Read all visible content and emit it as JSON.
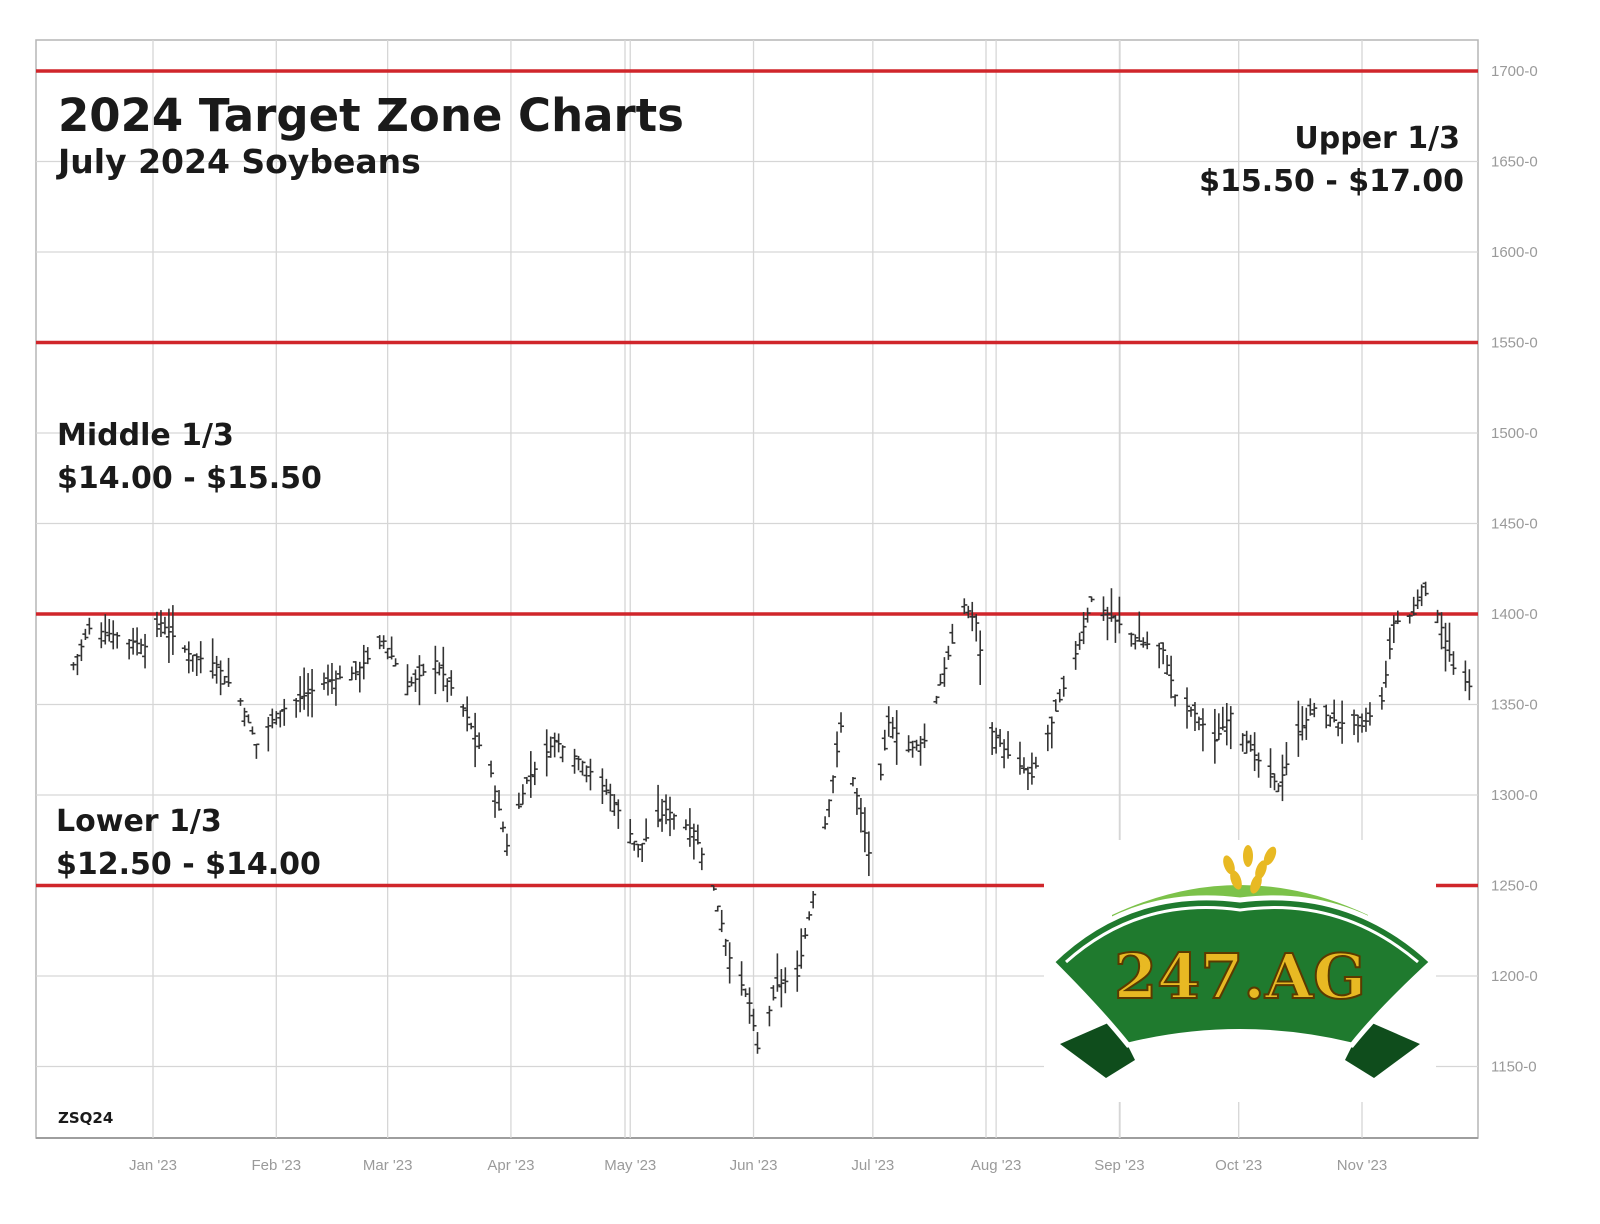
{
  "header": {
    "title": "2024 Target Zone Charts",
    "subtitle": "July 2024 Soybeans"
  },
  "zones": {
    "upper": {
      "label": "Upper 1/3",
      "range": "$15.50 - $17.00"
    },
    "middle": {
      "label": "Middle 1/3",
      "range": "$14.00 - $15.50"
    },
    "lower": {
      "label": "Lower 1/3",
      "range": "$12.50 - $14.00"
    }
  },
  "symbol": "ZSQ24",
  "logo": {
    "text": "247.AG"
  },
  "colors": {
    "zone_line": "#d0262b",
    "bars": "#333333",
    "grid": "#d6d6d6",
    "axis_text": "#9a9a9a",
    "logo_green": "#1f7a2e",
    "logo_gold": "#e8b923"
  },
  "chart_data": {
    "type": "ohlc",
    "x_tick_labels": [
      "Jan '23",
      "Feb '23",
      "Mar '23",
      "Apr '23",
      "May '23",
      "Jun '23",
      "Jul '23",
      "Aug '23",
      "Sep '23",
      "Oct '23",
      "Nov '23"
    ],
    "y_tick_values": [
      1150,
      1200,
      1250,
      1300,
      1350,
      1400,
      1450,
      1500,
      1550,
      1600,
      1650,
      1700
    ],
    "y_tick_labels": [
      "1150-0",
      "1200-0",
      "1250-0",
      "1300-0",
      "1350-0",
      "1400-0",
      "1450-0",
      "1500-0",
      "1550-0",
      "1600-0",
      "1650-0",
      "1700-0"
    ],
    "ylim": [
      1130,
      1715
    ],
    "zone_lines": [
      1250,
      1400,
      1550,
      1700
    ],
    "grid": true,
    "price_path": [
      {
        "date": "2022-12-12",
        "close": 1372
      },
      {
        "date": "2022-12-16",
        "close": 1392
      },
      {
        "date": "2022-12-23",
        "close": 1388
      },
      {
        "date": "2022-12-30",
        "close": 1382
      },
      {
        "date": "2023-01-03",
        "close": 1395
      },
      {
        "date": "2023-01-10",
        "close": 1378
      },
      {
        "date": "2023-01-17",
        "close": 1372
      },
      {
        "date": "2023-01-23",
        "close": 1352
      },
      {
        "date": "2023-01-27",
        "close": 1328
      },
      {
        "date": "2023-02-01",
        "close": 1345
      },
      {
        "date": "2023-02-06",
        "close": 1352
      },
      {
        "date": "2023-02-13",
        "close": 1362
      },
      {
        "date": "2023-02-21",
        "close": 1368
      },
      {
        "date": "2023-02-28",
        "close": 1385
      },
      {
        "date": "2023-03-06",
        "close": 1360
      },
      {
        "date": "2023-03-13",
        "close": 1374
      },
      {
        "date": "2023-03-20",
        "close": 1348
      },
      {
        "date": "2023-03-27",
        "close": 1312
      },
      {
        "date": "2023-03-31",
        "close": 1272
      },
      {
        "date": "2023-04-05",
        "close": 1308
      },
      {
        "date": "2023-04-12",
        "close": 1330
      },
      {
        "date": "2023-04-19",
        "close": 1318
      },
      {
        "date": "2023-04-26",
        "close": 1300
      },
      {
        "date": "2023-05-03",
        "close": 1270
      },
      {
        "date": "2023-05-10",
        "close": 1292
      },
      {
        "date": "2023-05-17",
        "close": 1280
      },
      {
        "date": "2023-05-22",
        "close": 1248
      },
      {
        "date": "2023-05-26",
        "close": 1210
      },
      {
        "date": "2023-05-31",
        "close": 1185
      },
      {
        "date": "2023-06-02",
        "close": 1160
      },
      {
        "date": "2023-06-07",
        "close": 1195
      },
      {
        "date": "2023-06-12",
        "close": 1200
      },
      {
        "date": "2023-06-16",
        "close": 1245
      },
      {
        "date": "2023-06-21",
        "close": 1310
      },
      {
        "date": "2023-06-23",
        "close": 1338
      },
      {
        "date": "2023-06-28",
        "close": 1290
      },
      {
        "date": "2023-06-30",
        "close": 1268
      },
      {
        "date": "2023-07-05",
        "close": 1340
      },
      {
        "date": "2023-07-10",
        "close": 1325
      },
      {
        "date": "2023-07-14",
        "close": 1330
      },
      {
        "date": "2023-07-19",
        "close": 1370
      },
      {
        "date": "2023-07-24",
        "close": 1405
      },
      {
        "date": "2023-07-27",
        "close": 1395
      },
      {
        "date": "2023-07-31",
        "close": 1335
      },
      {
        "date": "2023-08-04",
        "close": 1322
      },
      {
        "date": "2023-08-10",
        "close": 1310
      },
      {
        "date": "2023-08-15",
        "close": 1340
      },
      {
        "date": "2023-08-21",
        "close": 1378
      },
      {
        "date": "2023-08-25",
        "close": 1408
      },
      {
        "date": "2023-08-30",
        "close": 1398
      },
      {
        "date": "2023-09-06",
        "close": 1385
      },
      {
        "date": "2023-09-12",
        "close": 1380
      },
      {
        "date": "2023-09-15",
        "close": 1355
      },
      {
        "date": "2023-09-20",
        "close": 1345
      },
      {
        "date": "2023-09-25",
        "close": 1330
      },
      {
        "date": "2023-09-29",
        "close": 1345
      },
      {
        "date": "2023-10-04",
        "close": 1325
      },
      {
        "date": "2023-10-09",
        "close": 1310
      },
      {
        "date": "2023-10-11",
        "close": 1305
      },
      {
        "date": "2023-10-16",
        "close": 1335
      },
      {
        "date": "2023-10-20",
        "close": 1348
      },
      {
        "date": "2023-10-26",
        "close": 1340
      },
      {
        "date": "2023-11-01",
        "close": 1338
      },
      {
        "date": "2023-11-06",
        "close": 1352
      },
      {
        "date": "2023-11-09",
        "close": 1395
      },
      {
        "date": "2023-11-14",
        "close": 1400
      },
      {
        "date": "2023-11-16",
        "close": 1415
      },
      {
        "date": "2023-11-20",
        "close": 1400
      },
      {
        "date": "2023-11-24",
        "close": 1370
      },
      {
        "date": "2023-11-28",
        "close": 1360
      }
    ]
  }
}
